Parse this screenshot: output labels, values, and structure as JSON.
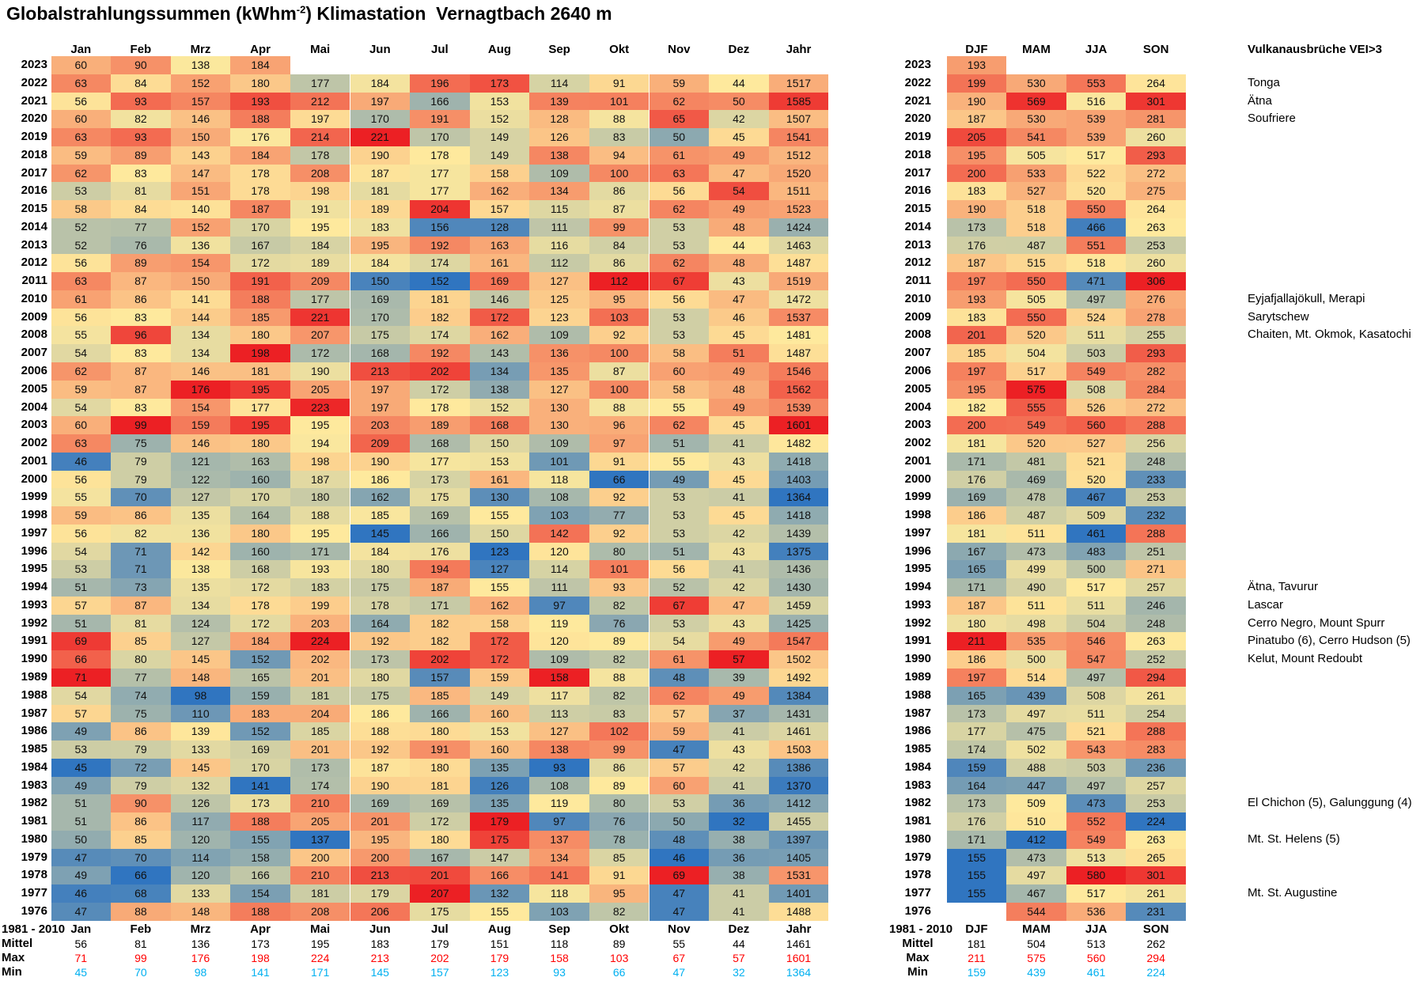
{
  "title": {
    "prefix": "Globalstrahlungssummen (kWhm",
    "sup": "-2",
    "suffix": ") Klimastation  Vernagtbach 2640 m"
  },
  "volcano_header": "Vulkanausbrüche VEI>3",
  "stats_period_label": "1981 - 2010",
  "stats_row_labels": {
    "mean": "Mittel",
    "max": "Max",
    "min": "Min"
  },
  "chart_data": {
    "type": "heatmap",
    "title": "Globalstrahlungssummen (kWhm-2) Klimastation Vernagtbach 2640 m",
    "unit": "kWhm-2",
    "month_columns": [
      "Jan",
      "Feb",
      "Mrz",
      "Apr",
      "Mai",
      "Jun",
      "Jul",
      "Aug",
      "Sep",
      "Okt",
      "Nov",
      "Dez",
      "Jahr"
    ],
    "season_columns": [
      "DJF",
      "MAM",
      "JJA",
      "SON"
    ],
    "years": [
      2023,
      2022,
      2021,
      2020,
      2019,
      2018,
      2017,
      2016,
      2015,
      2014,
      2013,
      2012,
      2011,
      2010,
      2009,
      2008,
      2007,
      2006,
      2005,
      2004,
      2003,
      2002,
      2001,
      2000,
      1999,
      1998,
      1997,
      1996,
      1995,
      1994,
      1993,
      1992,
      1991,
      1990,
      1989,
      1988,
      1987,
      1986,
      1985,
      1984,
      1983,
      1982,
      1981,
      1980,
      1979,
      1978,
      1977,
      1976
    ],
    "monthly_values": [
      [
        60,
        90,
        138,
        184,
        null,
        null,
        null,
        null,
        null,
        null,
        null,
        null,
        null
      ],
      [
        63,
        84,
        152,
        180,
        177,
        184,
        196,
        173,
        114,
        91,
        59,
        44,
        1517
      ],
      [
        56,
        93,
        157,
        193,
        212,
        197,
        166,
        153,
        139,
        101,
        62,
        50,
        1585
      ],
      [
        60,
        82,
        146,
        188,
        197,
        170,
        191,
        152,
        128,
        88,
        65,
        42,
        1507
      ],
      [
        63,
        93,
        150,
        176,
        214,
        221,
        170,
        149,
        126,
        83,
        50,
        45,
        1541
      ],
      [
        59,
        89,
        143,
        184,
        178,
        190,
        178,
        149,
        138,
        94,
        61,
        49,
        1512
      ],
      [
        62,
        83,
        147,
        178,
        208,
        187,
        177,
        158,
        109,
        100,
        63,
        47,
        1520
      ],
      [
        53,
        81,
        151,
        178,
        198,
        181,
        177,
        162,
        134,
        86,
        56,
        54,
        1511
      ],
      [
        58,
        84,
        140,
        187,
        191,
        189,
        204,
        157,
        115,
        87,
        62,
        49,
        1523
      ],
      [
        52,
        77,
        152,
        170,
        195,
        183,
        156,
        128,
        111,
        99,
        53,
        48,
        1424
      ],
      [
        52,
        76,
        136,
        167,
        184,
        195,
        192,
        163,
        116,
        84,
        53,
        44,
        1463
      ],
      [
        56,
        89,
        154,
        172,
        189,
        184,
        174,
        161,
        112,
        86,
        62,
        48,
        1487
      ],
      [
        63,
        87,
        150,
        191,
        209,
        150,
        152,
        169,
        127,
        112,
        67,
        43,
        1519
      ],
      [
        61,
        86,
        141,
        188,
        177,
        169,
        181,
        146,
        125,
        95,
        56,
        47,
        1472
      ],
      [
        56,
        83,
        144,
        185,
        221,
        170,
        182,
        172,
        123,
        103,
        53,
        46,
        1537
      ],
      [
        55,
        96,
        134,
        180,
        207,
        175,
        174,
        162,
        109,
        92,
        53,
        45,
        1481
      ],
      [
        54,
        83,
        134,
        198,
        172,
        168,
        192,
        143,
        136,
        100,
        58,
        51,
        1487
      ],
      [
        62,
        87,
        146,
        181,
        190,
        213,
        202,
        134,
        135,
        87,
        60,
        49,
        1546
      ],
      [
        59,
        87,
        176,
        195,
        205,
        197,
        172,
        138,
        127,
        100,
        58,
        48,
        1562
      ],
      [
        54,
        83,
        154,
        177,
        223,
        197,
        178,
        152,
        130,
        88,
        55,
        49,
        1539
      ],
      [
        60,
        99,
        159,
        195,
        195,
        203,
        189,
        168,
        130,
        96,
        62,
        45,
        1601
      ],
      [
        63,
        75,
        146,
        180,
        194,
        209,
        168,
        150,
        109,
        97,
        51,
        41,
        1482
      ],
      [
        46,
        79,
        121,
        163,
        198,
        190,
        177,
        153,
        101,
        91,
        55,
        43,
        1418
      ],
      [
        56,
        79,
        122,
        160,
        187,
        186,
        173,
        161,
        118,
        66,
        49,
        45,
        1403
      ],
      [
        55,
        70,
        127,
        170,
        180,
        162,
        175,
        130,
        108,
        92,
        53,
        41,
        1364
      ],
      [
        59,
        86,
        135,
        164,
        188,
        185,
        169,
        155,
        103,
        77,
        53,
        45,
        1418
      ],
      [
        56,
        82,
        136,
        180,
        195,
        145,
        166,
        150,
        142,
        92,
        53,
        42,
        1439
      ],
      [
        54,
        71,
        142,
        160,
        171,
        184,
        176,
        123,
        120,
        80,
        51,
        43,
        1375
      ],
      [
        53,
        71,
        138,
        168,
        193,
        180,
        194,
        127,
        114,
        101,
        56,
        41,
        1436
      ],
      [
        51,
        73,
        135,
        172,
        183,
        175,
        187,
        155,
        111,
        93,
        52,
        42,
        1430
      ],
      [
        57,
        87,
        134,
        178,
        199,
        178,
        171,
        162,
        97,
        82,
        67,
        47,
        1459
      ],
      [
        51,
        81,
        124,
        172,
        203,
        164,
        182,
        158,
        119,
        76,
        53,
        43,
        1425
      ],
      [
        69,
        85,
        127,
        184,
        224,
        192,
        182,
        172,
        120,
        89,
        54,
        49,
        1547
      ],
      [
        66,
        80,
        145,
        152,
        202,
        173,
        202,
        172,
        109,
        82,
        61,
        57,
        1502
      ],
      [
        71,
        77,
        148,
        165,
        201,
        180,
        157,
        159,
        158,
        88,
        48,
        39,
        1492
      ],
      [
        54,
        74,
        98,
        159,
        181,
        175,
        185,
        149,
        117,
        82,
        62,
        49,
        1384
      ],
      [
        57,
        75,
        110,
        183,
        204,
        186,
        166,
        160,
        113,
        83,
        57,
        37,
        1431
      ],
      [
        49,
        86,
        139,
        152,
        185,
        188,
        180,
        153,
        127,
        102,
        59,
        41,
        1461
      ],
      [
        53,
        79,
        133,
        169,
        201,
        192,
        191,
        160,
        138,
        99,
        47,
        43,
        1503
      ],
      [
        45,
        72,
        145,
        170,
        173,
        187,
        180,
        135,
        93,
        86,
        57,
        42,
        1386
      ],
      [
        49,
        79,
        132,
        141,
        174,
        190,
        181,
        126,
        108,
        89,
        60,
        41,
        1370
      ],
      [
        51,
        90,
        126,
        173,
        210,
        169,
        169,
        135,
        119,
        80,
        53,
        36,
        1412
      ],
      [
        51,
        86,
        117,
        188,
        205,
        201,
        172,
        179,
        97,
        76,
        50,
        32,
        1455
      ],
      [
        50,
        85,
        120,
        155,
        137,
        195,
        180,
        175,
        137,
        78,
        48,
        38,
        1397
      ],
      [
        47,
        70,
        114,
        158,
        200,
        200,
        167,
        147,
        134,
        85,
        46,
        36,
        1405
      ],
      [
        49,
        66,
        120,
        166,
        210,
        213,
        201,
        166,
        141,
        91,
        69,
        38,
        1531
      ],
      [
        46,
        68,
        133,
        154,
        181,
        179,
        207,
        132,
        118,
        95,
        47,
        41,
        1401
      ],
      [
        47,
        88,
        148,
        188,
        208,
        206,
        175,
        155,
        103,
        82,
        47,
        41,
        1488
      ]
    ],
    "seasonal_values": [
      [
        193,
        null,
        null,
        null
      ],
      [
        199,
        530,
        553,
        264
      ],
      [
        190,
        569,
        516,
        301
      ],
      [
        187,
        530,
        539,
        281
      ],
      [
        205,
        541,
        539,
        260
      ],
      [
        195,
        505,
        517,
        293
      ],
      [
        200,
        533,
        522,
        272
      ],
      [
        183,
        527,
        520,
        275
      ],
      [
        190,
        518,
        550,
        264
      ],
      [
        173,
        518,
        466,
        263
      ],
      [
        176,
        487,
        551,
        253
      ],
      [
        187,
        515,
        518,
        260
      ],
      [
        197,
        550,
        471,
        306
      ],
      [
        193,
        505,
        497,
        276
      ],
      [
        183,
        550,
        524,
        278
      ],
      [
        201,
        520,
        511,
        255
      ],
      [
        185,
        504,
        503,
        293
      ],
      [
        197,
        517,
        549,
        282
      ],
      [
        195,
        575,
        508,
        284
      ],
      [
        182,
        555,
        526,
        272
      ],
      [
        200,
        549,
        560,
        288
      ],
      [
        181,
        520,
        527,
        256
      ],
      [
        171,
        481,
        521,
        248
      ],
      [
        176,
        469,
        520,
        233
      ],
      [
        169,
        478,
        467,
        253
      ],
      [
        186,
        487,
        509,
        232
      ],
      [
        181,
        511,
        461,
        288
      ],
      [
        167,
        473,
        483,
        251
      ],
      [
        165,
        499,
        500,
        271
      ],
      [
        171,
        490,
        517,
        257
      ],
      [
        187,
        511,
        511,
        246
      ],
      [
        180,
        498,
        504,
        248
      ],
      [
        211,
        535,
        546,
        263
      ],
      [
        186,
        500,
        547,
        252
      ],
      [
        197,
        514,
        497,
        294
      ],
      [
        165,
        439,
        508,
        261
      ],
      [
        173,
        497,
        511,
        254
      ],
      [
        177,
        475,
        521,
        288
      ],
      [
        174,
        502,
        543,
        283
      ],
      [
        159,
        488,
        503,
        236
      ],
      [
        164,
        447,
        497,
        257
      ],
      [
        173,
        509,
        473,
        253
      ],
      [
        176,
        510,
        552,
        224
      ],
      [
        171,
        412,
        549,
        263
      ],
      [
        155,
        473,
        513,
        265
      ],
      [
        155,
        497,
        580,
        301
      ],
      [
        155,
        467,
        517,
        261
      ],
      [
        null,
        544,
        536,
        231
      ]
    ],
    "stats": {
      "period": "1981 - 2010",
      "monthly": {
        "mittel": [
          56,
          81,
          136,
          173,
          195,
          183,
          179,
          151,
          118,
          89,
          55,
          44,
          1461
        ],
        "max": [
          71,
          99,
          176,
          198,
          224,
          213,
          202,
          179,
          158,
          103,
          67,
          57,
          1601
        ],
        "min": [
          45,
          70,
          98,
          141,
          171,
          145,
          157,
          123,
          93,
          66,
          47,
          32,
          1364
        ]
      },
      "seasonal": {
        "mittel": [
          181,
          504,
          513,
          262
        ],
        "max": [
          211,
          575,
          560,
          294
        ],
        "min": [
          159,
          439,
          461,
          224
        ]
      }
    },
    "volcano_annotations": [
      {
        "year": 2022,
        "label": "Tonga"
      },
      {
        "year": 2021,
        "label": "Ätna"
      },
      {
        "year": 2020,
        "label": "Soufriere"
      },
      {
        "year": 2010,
        "label": "Eyjafjallajökull, Merapi"
      },
      {
        "year": 2009,
        "label": "Sarytschew"
      },
      {
        "year": 2008,
        "label": "Chaiten, Mt. Okmok, Kasatochi"
      },
      {
        "year": 1994,
        "label": "Ätna, Tavurur"
      },
      {
        "year": 1993,
        "label": "Lascar"
      },
      {
        "year": 1992,
        "label": "Cerro Negro, Mount Spurr"
      },
      {
        "year": 1991,
        "label": "Pinatubo (6), Cerro Hudson (5)"
      },
      {
        "year": 1990,
        "label": "Kelut, Mount Redoubt"
      },
      {
        "year": 1982,
        "label": "El Chichon (5), Galunggung (4)"
      },
      {
        "year": 1980,
        "label": "Mt. St. Helens (5)"
      },
      {
        "year": 1977,
        "label": "Mt. St. Augustine"
      }
    ],
    "color_scale": {
      "low": "#3075C0",
      "mid": "#FEE99D",
      "high": "#EC2024",
      "midpoint": "median per column",
      "max_text_color": "#FF0000",
      "min_text_color": "#00B0F0"
    },
    "layout": {
      "legend": "none",
      "grid": "off"
    }
  }
}
